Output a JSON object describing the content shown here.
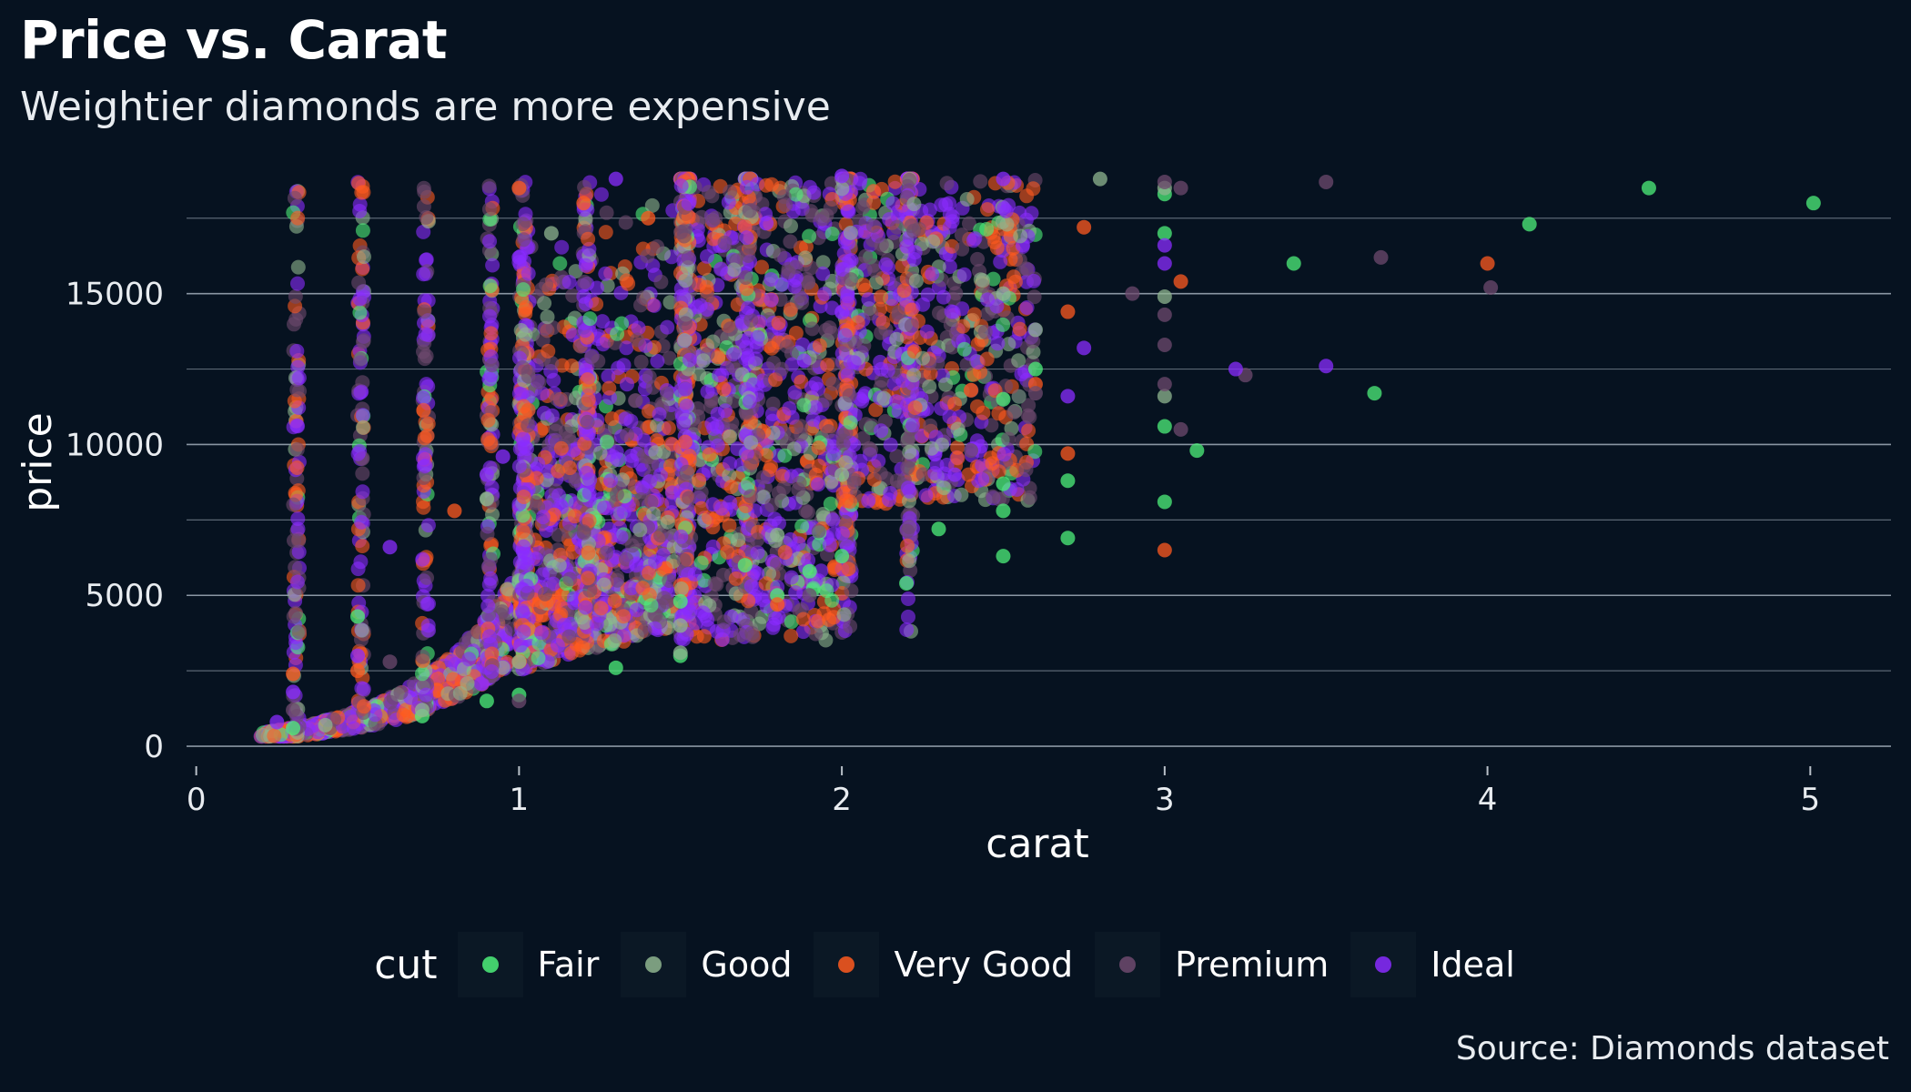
{
  "header": {
    "title": "Price vs. Carat",
    "subtitle": "Weightier diamonds are more expensive"
  },
  "caption": "Source: Diamonds dataset",
  "chart_data": {
    "type": "scatter",
    "title": "Price vs. Carat",
    "subtitle": "Weightier diamonds are more expensive",
    "xlabel": "carat",
    "ylabel": "price",
    "xlim": [
      -0.03,
      5.25
    ],
    "ylim": [
      -300,
      19000
    ],
    "x_ticks": [
      "0",
      "1",
      "2",
      "3",
      "4",
      "5"
    ],
    "y_ticks": [
      "0",
      "5000",
      "10000",
      "15000"
    ],
    "grid": "horizontal major and minor",
    "legend": {
      "title": "cut",
      "placement": "bottom"
    },
    "colors": {
      "background": "#061220",
      "gridline": "#5a6673",
      "Fair": "#4ef07a",
      "Good": "#8fb58f",
      "Very Good": "#ff5a1f",
      "Premium": "#6e4a6e",
      "Ideal": "#8a2cff"
    },
    "series": [
      {
        "name": "Fair",
        "color": "#4ef07a",
        "points": [
          [
            0.3,
            600
          ],
          [
            0.5,
            4300
          ],
          [
            0.7,
            1000
          ],
          [
            0.9,
            1500
          ],
          [
            1.0,
            1700
          ],
          [
            1.3,
            2600
          ],
          [
            1.5,
            3000
          ],
          [
            1.5,
            4800
          ],
          [
            1.7,
            6000
          ],
          [
            1.8,
            5000
          ],
          [
            1.9,
            5800
          ],
          [
            2.0,
            6300
          ],
          [
            2.2,
            5400
          ],
          [
            2.3,
            7200
          ],
          [
            2.5,
            6300
          ],
          [
            2.5,
            7800
          ],
          [
            2.5,
            8700
          ],
          [
            2.5,
            11500
          ],
          [
            2.6,
            12500
          ],
          [
            2.7,
            6900
          ],
          [
            2.7,
            8800
          ],
          [
            3.0,
            8100
          ],
          [
            3.0,
            10600
          ],
          [
            3.0,
            17000
          ],
          [
            3.0,
            18300
          ],
          [
            3.1,
            9800
          ],
          [
            3.4,
            16000
          ],
          [
            3.65,
            11700
          ],
          [
            4.13,
            17300
          ],
          [
            4.5,
            18500
          ],
          [
            5.01,
            18000
          ]
        ]
      },
      {
        "name": "Good",
        "color": "#8fb58f",
        "points": [
          [
            0.4,
            700
          ],
          [
            0.7,
            1200
          ],
          [
            0.9,
            8200
          ],
          [
            1.0,
            2800
          ],
          [
            1.1,
            17000
          ],
          [
            1.5,
            3100
          ],
          [
            1.5,
            4000
          ],
          [
            1.8,
            7000
          ],
          [
            2.0,
            9000
          ],
          [
            2.5,
            15000
          ],
          [
            2.6,
            13800
          ],
          [
            2.8,
            18800
          ],
          [
            3.0,
            11600
          ],
          [
            3.0,
            14900
          ],
          [
            3.0,
            18500
          ]
        ]
      },
      {
        "name": "Very Good",
        "color": "#ff5a1f",
        "points": [
          [
            0.3,
            2400
          ],
          [
            0.5,
            2500
          ],
          [
            0.8,
            7800
          ],
          [
            1.0,
            18500
          ],
          [
            1.2,
            18000
          ],
          [
            1.4,
            17500
          ],
          [
            1.8,
            4700
          ],
          [
            2.4,
            11800
          ],
          [
            2.6,
            12000
          ],
          [
            2.7,
            14400
          ],
          [
            2.7,
            9700
          ],
          [
            2.75,
            17200
          ],
          [
            3.0,
            6500
          ],
          [
            3.05,
            15400
          ],
          [
            4.0,
            16000
          ]
        ]
      },
      {
        "name": "Premium",
        "color": "#6e4a6e",
        "points": [
          [
            0.3,
            1200
          ],
          [
            0.6,
            2800
          ],
          [
            1.0,
            1500
          ],
          [
            1.9,
            5000
          ],
          [
            2.4,
            9800
          ],
          [
            2.6,
            11700
          ],
          [
            2.9,
            15000
          ],
          [
            3.0,
            12000
          ],
          [
            3.0,
            13300
          ],
          [
            3.0,
            14300
          ],
          [
            3.0,
            18700
          ],
          [
            3.05,
            18500
          ],
          [
            3.05,
            10500
          ],
          [
            3.25,
            12300
          ],
          [
            3.5,
            18700
          ],
          [
            3.67,
            16200
          ],
          [
            4.01,
            15200
          ]
        ]
      },
      {
        "name": "Ideal",
        "color": "#8a2cff",
        "points": [
          [
            0.25,
            800
          ],
          [
            0.3,
            1800
          ],
          [
            0.5,
            3000
          ],
          [
            0.6,
            6600
          ],
          [
            0.9,
            9000
          ],
          [
            0.95,
            9600
          ],
          [
            1.0,
            16200
          ],
          [
            1.3,
            18800
          ],
          [
            2.0,
            18900
          ],
          [
            2.35,
            9000
          ],
          [
            2.5,
            18800
          ],
          [
            3.0,
            16000
          ],
          [
            3.0,
            16600
          ],
          [
            3.22,
            12500
          ],
          [
            3.5,
            12600
          ],
          [
            2.7,
            11600
          ],
          [
            2.75,
            13200
          ]
        ]
      }
    ]
  },
  "legend_items": [
    {
      "label": "Fair",
      "color": "#4ef07a"
    },
    {
      "label": "Good",
      "color": "#8fb58f"
    },
    {
      "label": "Very Good",
      "color": "#ff5a1f"
    },
    {
      "label": "Premium",
      "color": "#6e4a6e"
    },
    {
      "label": "Ideal",
      "color": "#8a2cff"
    }
  ]
}
